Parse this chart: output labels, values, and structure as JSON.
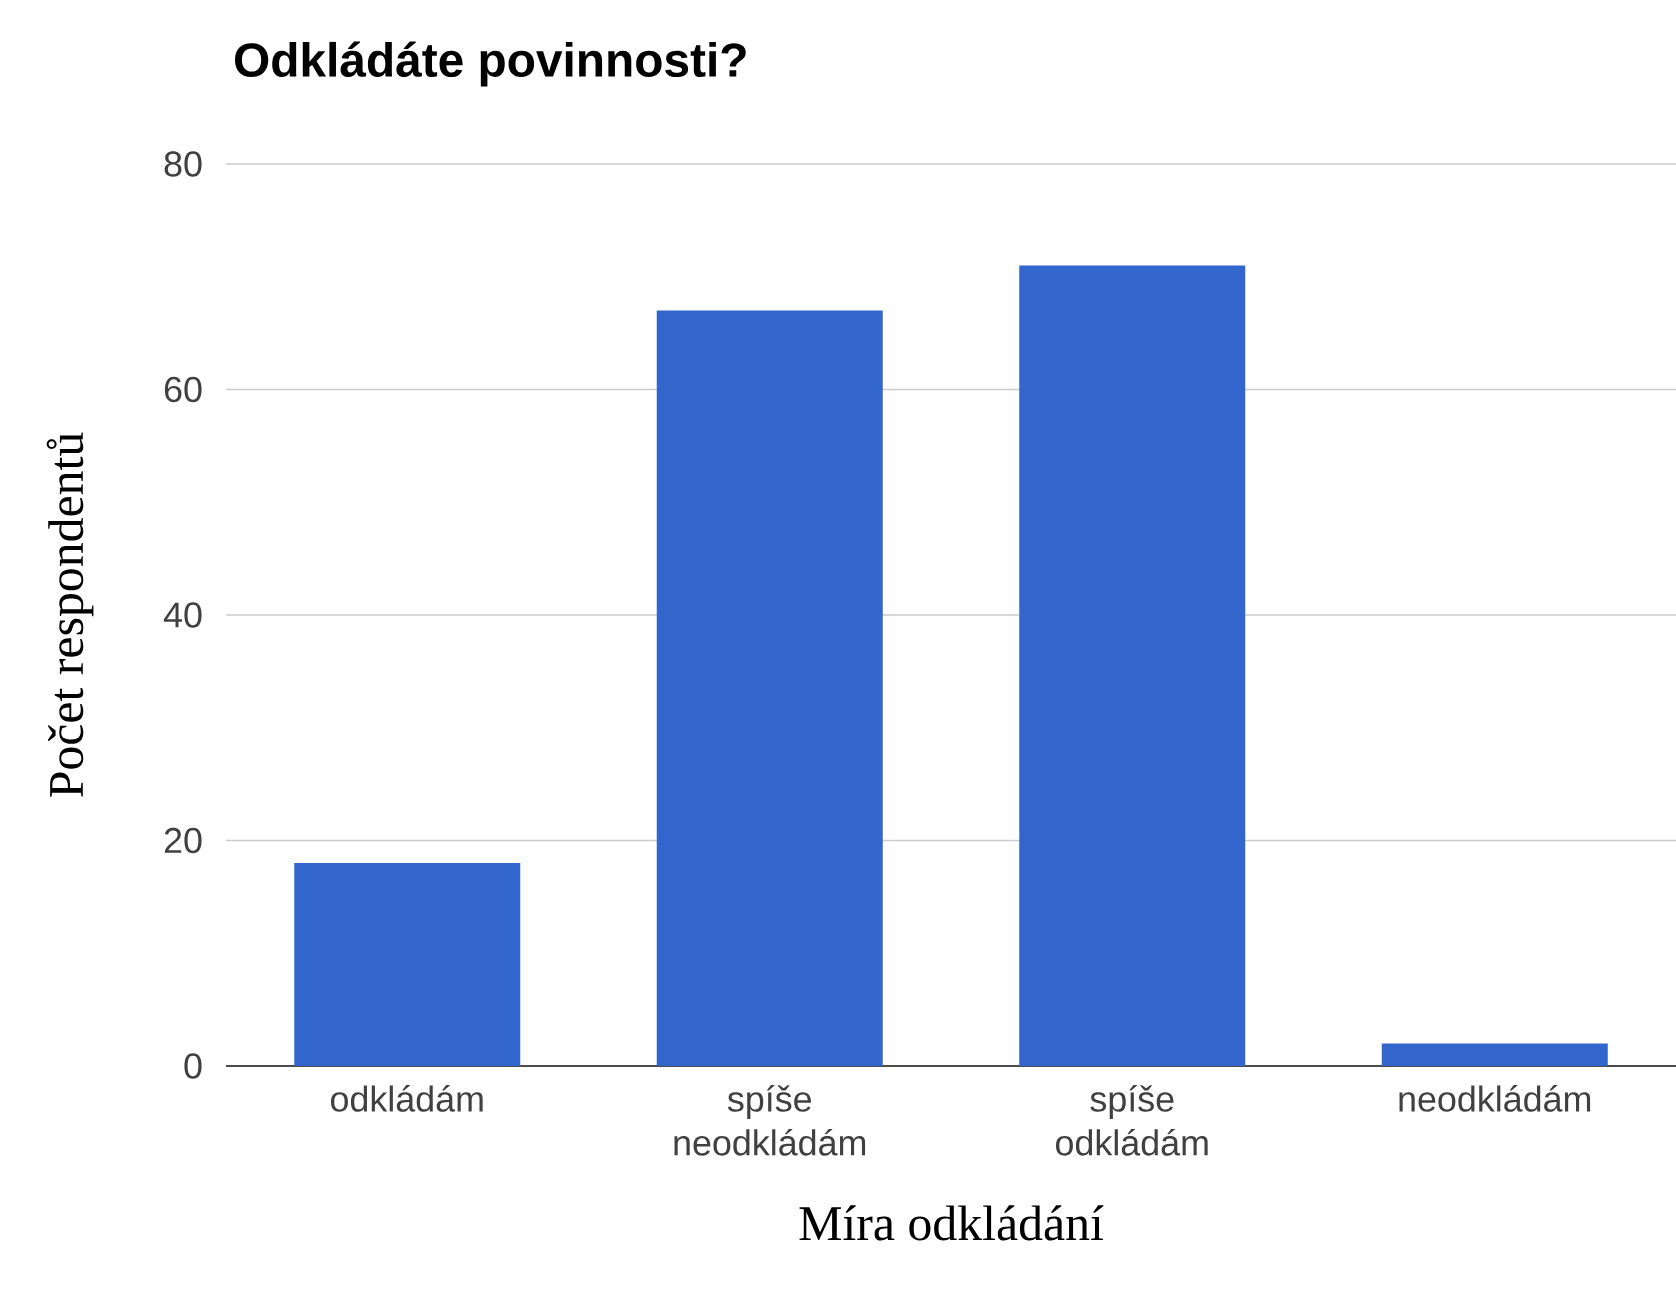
{
  "chart_data": {
    "type": "bar",
    "title": "Odkládáte povinnosti?",
    "xlabel": "Míra odkládání",
    "ylabel": "Počet respondentů",
    "categories": [
      "odkládám",
      "spíše neodkládám",
      "spíše odkládám",
      "neodkládám"
    ],
    "values": [
      18,
      67,
      71,
      2
    ],
    "color": "#3366cc",
    "ylim": [
      0,
      80
    ],
    "yticks": [
      0,
      20,
      40,
      60,
      80
    ],
    "grid": "y"
  }
}
